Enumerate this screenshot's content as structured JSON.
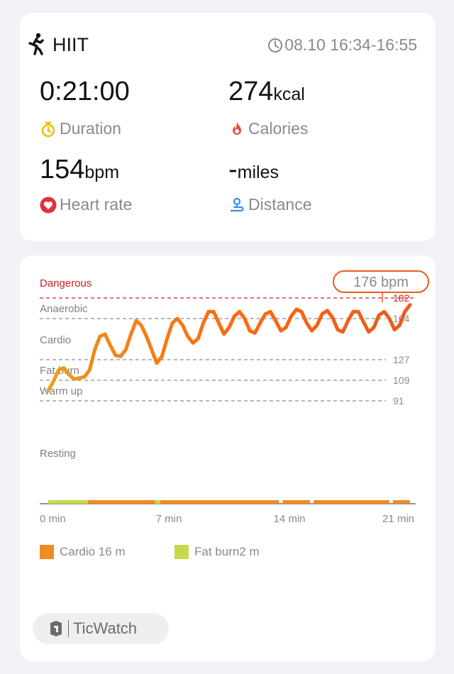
{
  "workout": {
    "title": "HIIT",
    "icon": "running-person-icon",
    "time_range": "08.10 16:34-16:55"
  },
  "stats": {
    "duration": {
      "value": "0:21:00",
      "unit": "",
      "label": "Duration",
      "icon": "stopwatch-icon",
      "icon_color": "#f5b800"
    },
    "calories": {
      "value": "274",
      "unit": "kcal",
      "label": "Calories",
      "icon": "flame-icon",
      "icon_color": "#ea4a3a"
    },
    "heart_rate": {
      "value": "154",
      "unit": "bpm",
      "label": "Heart rate",
      "icon": "heart-icon",
      "icon_color": "#e0303c"
    },
    "distance": {
      "value": "-",
      "unit": "miles",
      "label": "Distance",
      "icon": "route-icon",
      "icon_color": "#3b8be0"
    }
  },
  "chart_data": {
    "type": "line",
    "xlabel": "",
    "ylabel": "",
    "x_ticks": [
      "0 min",
      "7 min",
      "14 min",
      "21 min"
    ],
    "xlim": [
      0,
      21
    ],
    "zones": [
      {
        "name": "Dangerous",
        "threshold": 182,
        "color": "#cc2020"
      },
      {
        "name": "Anaerobic",
        "threshold": 164,
        "color": "#808080"
      },
      {
        "name": "Cardio",
        "threshold": 127,
        "color": "#808080"
      },
      {
        "name": "Fat burn",
        "threshold": 109,
        "color": "#808080"
      },
      {
        "name": "Warm up",
        "threshold": 91,
        "color": "#808080"
      },
      {
        "name": "Resting",
        "threshold": null,
        "color": "#808080"
      }
    ],
    "max_marker": {
      "label": "176 bpm",
      "value": 176
    },
    "series": [
      {
        "x": [
          0,
          0.3,
          0.6,
          0.9,
          1.2,
          1.5,
          1.8,
          2.1,
          2.4,
          2.7,
          3.0,
          3.3,
          3.6,
          3.9,
          4.2,
          4.5,
          4.8,
          5.1,
          5.4,
          5.7,
          6.0,
          6.3,
          6.6,
          6.9,
          7.2,
          7.5,
          7.8,
          8.1,
          8.4,
          8.7,
          9.0,
          9.3,
          9.6,
          9.9,
          10.2,
          10.5,
          10.8,
          11.1,
          11.4,
          11.7,
          12.0,
          12.3,
          12.6,
          12.9,
          13.2,
          13.5,
          13.8,
          14.1,
          14.4,
          14.7,
          15.0,
          15.3,
          15.6,
          15.9,
          16.2,
          16.5,
          16.8,
          17.1,
          17.4,
          17.7,
          18.0,
          18.3,
          18.6,
          18.9,
          19.2,
          19.5,
          19.8,
          20.1,
          20.4,
          20.7,
          21.0
        ],
        "values": [
          100,
          108,
          118,
          120,
          114,
          110,
          111,
          112,
          118,
          136,
          148,
          150,
          140,
          131,
          130,
          136,
          150,
          162,
          158,
          148,
          136,
          124,
          130,
          146,
          160,
          164,
          158,
          148,
          142,
          146,
          160,
          170,
          170,
          160,
          150,
          156,
          166,
          170,
          164,
          153,
          151,
          160,
          168,
          170,
          162,
          153,
          156,
          166,
          172,
          170,
          160,
          153,
          158,
          168,
          171,
          165,
          154,
          152,
          162,
          170,
          170,
          161,
          152,
          156,
          167,
          170,
          164,
          154,
          158,
          170,
          176
        ],
        "colors": [
          "#f0a020",
          "#ff6a10",
          "#e95a1e"
        ]
      }
    ],
    "zone_bar": [
      {
        "zone": "Fat burn",
        "from": 0,
        "to": 2.3,
        "color": "#c7d94a"
      },
      {
        "zone": "Cardio",
        "from": 2.3,
        "to": 6.2,
        "color": "#ef8a25"
      },
      {
        "zone": "Fat burn",
        "from": 6.2,
        "to": 6.5,
        "color": "#c7d94a"
      },
      {
        "zone": "Cardio",
        "from": 6.5,
        "to": 13.4,
        "color": "#ef8a25"
      },
      {
        "zone": "Cardio",
        "from": 13.6,
        "to": 15.2,
        "color": "#ef8a25"
      },
      {
        "zone": "Cardio",
        "from": 15.4,
        "to": 19.8,
        "color": "#ef8a25"
      },
      {
        "zone": "Cardio",
        "from": 20.0,
        "to": 21.0,
        "color": "#ef8a25"
      }
    ],
    "legend": [
      {
        "label": "Cardio 16 m",
        "color": "#ef8a25"
      },
      {
        "label": "Fat burn2 m",
        "color": "#c7d94a"
      }
    ]
  },
  "brand": {
    "label": "TicWatch",
    "icon": "ticwatch-logo-icon"
  }
}
